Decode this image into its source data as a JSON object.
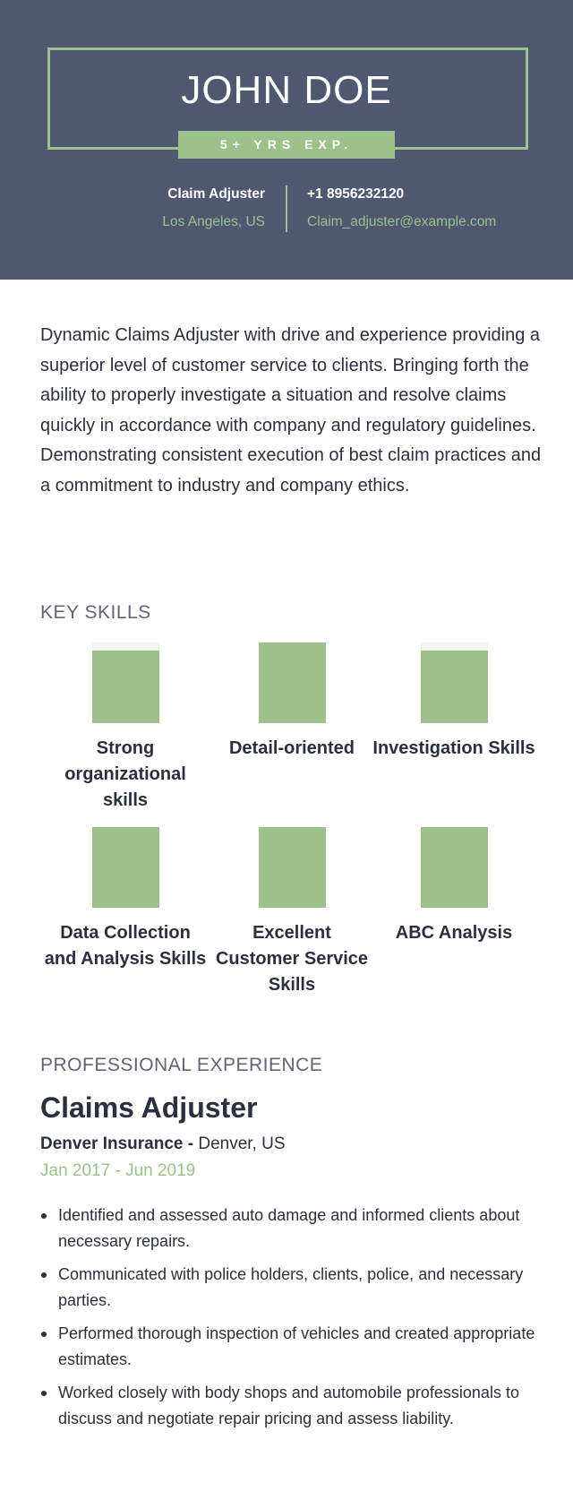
{
  "header": {
    "name": "JOHN DOE",
    "experience_badge": "5+ YRS EXP.",
    "job_title": "Claim Adjuster",
    "location": "Los Angeles, US",
    "phone": "+1 8956232120",
    "email": "Claim_adjuster@example.com"
  },
  "summary": "Dynamic Claims Adjuster with drive and experience providing a superior level of customer service to clients. Bringing forth the ability to properly investigate a situation and resolve claims quickly in accordance with company and regulatory guidelines. Demonstrating consistent execution of best claim practices and a commitment to industry and company ethics.",
  "skills": {
    "title": "KEY SKILLS",
    "items": [
      {
        "label": "Strong organizational skills",
        "level": 0.9
      },
      {
        "label": "Detail-oriented",
        "level": 1.0
      },
      {
        "label": "Investigation Skills",
        "level": 0.9
      },
      {
        "label": "Data Collection and Analysis Skills",
        "level": 1.0
      },
      {
        "label": "Excellent Customer Service Skills",
        "level": 1.0
      },
      {
        "label": "ABC Analysis",
        "level": 1.0
      }
    ]
  },
  "experience": {
    "title": "PROFESSIONAL EXPERIENCE",
    "jobs": [
      {
        "title": "Claims Adjuster",
        "company": "Denver Insurance -",
        "location": " Denver, US",
        "dates": "Jan 2017 - Jun 2019",
        "bullets": [
          "Identified and assessed auto damage and informed clients about necessary repairs.",
          "Communicated with police holders, clients, police, and necessary parties.",
          "Performed thorough inspection of vehicles and created appropriate estimates.",
          "Worked closely with body shops and automobile professionals to discuss and negotiate repair pricing and assess liability."
        ]
      }
    ]
  },
  "colors": {
    "header_bg": "#4f5870",
    "accent": "#9cc18a",
    "text": "#2b3040"
  }
}
